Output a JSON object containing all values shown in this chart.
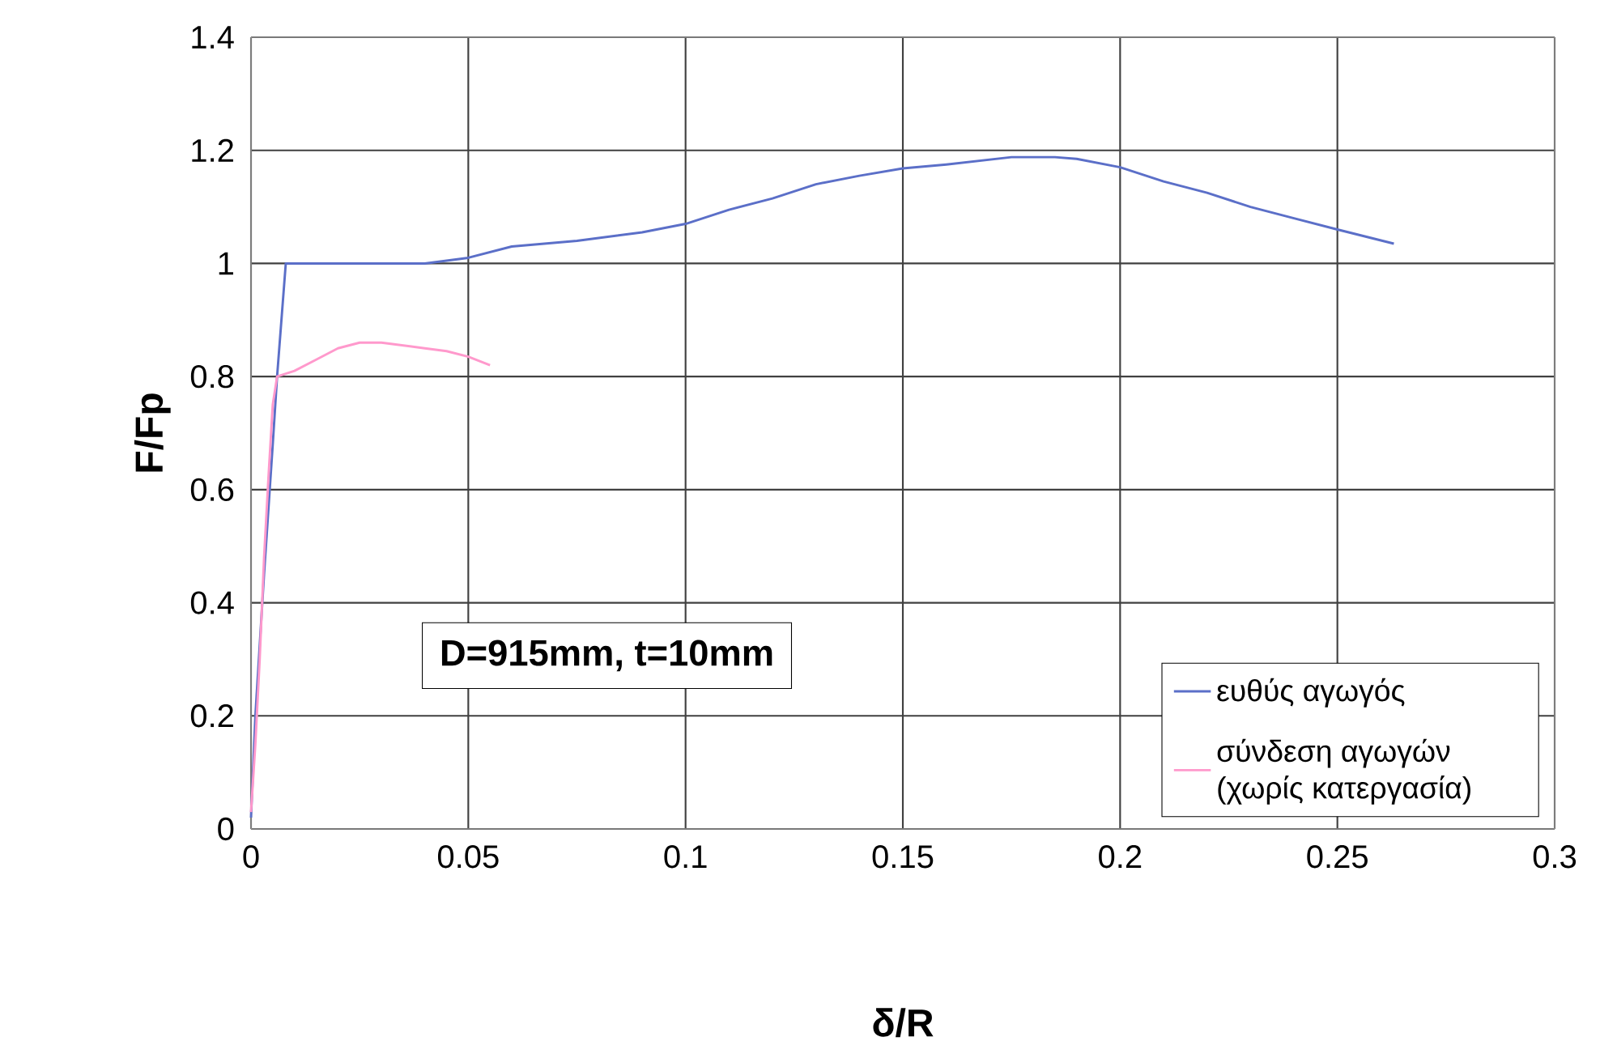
{
  "chart_data": {
    "type": "line",
    "xlabel": "δ/R",
    "ylabel": "F/Fp",
    "xlim": [
      0,
      0.3
    ],
    "ylim": [
      0,
      1.4
    ],
    "xticks": [
      0,
      0.05,
      0.1,
      0.15,
      0.2,
      0.25,
      0.3
    ],
    "yticks": [
      0,
      0.2,
      0.4,
      0.6,
      0.8,
      1,
      1.2,
      1.4
    ],
    "grid": true,
    "legend": "bottom right",
    "marker": "none",
    "line_style": "solid",
    "annotations": [
      "D=915mm, t=10mm"
    ],
    "series": [
      {
        "name": "ευθύς αγωγός",
        "color": "#5b6fc8",
        "x": [
          0,
          0.001,
          0.003,
          0.005,
          0.006,
          0.007,
          0.008,
          0.02,
          0.03,
          0.04,
          0.05,
          0.06,
          0.075,
          0.09,
          0.1,
          0.11,
          0.12,
          0.13,
          0.14,
          0.15,
          0.16,
          0.175,
          0.185,
          0.19,
          0.2,
          0.21,
          0.22,
          0.23,
          0.24,
          0.25,
          0.263
        ],
        "values": [
          0.02,
          0.2,
          0.45,
          0.68,
          0.8,
          0.9,
          1.0,
          1.0,
          1.0,
          1.0,
          1.01,
          1.03,
          1.04,
          1.055,
          1.07,
          1.095,
          1.115,
          1.14,
          1.155,
          1.168,
          1.175,
          1.188,
          1.188,
          1.185,
          1.17,
          1.145,
          1.125,
          1.1,
          1.08,
          1.06,
          1.035
        ]
      },
      {
        "name": "σύνδεση αγωγών (χωρίς κατεργασία)",
        "color": "#ff99cc",
        "x": [
          0,
          0.001,
          0.002,
          0.003,
          0.004,
          0.005,
          0.006,
          0.01,
          0.015,
          0.02,
          0.025,
          0.03,
          0.035,
          0.04,
          0.045,
          0.05,
          0.055
        ],
        "values": [
          0.03,
          0.15,
          0.3,
          0.48,
          0.62,
          0.75,
          0.8,
          0.81,
          0.83,
          0.85,
          0.86,
          0.86,
          0.855,
          0.85,
          0.845,
          0.835,
          0.82
        ]
      }
    ]
  }
}
